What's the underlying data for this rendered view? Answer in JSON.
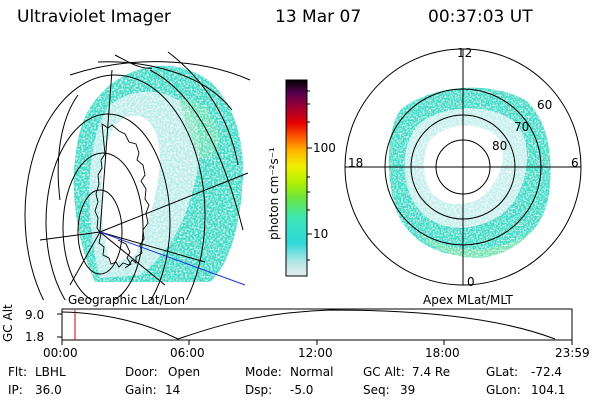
{
  "header": {
    "title": "Ultraviolet Imager",
    "date": "13 Mar 07",
    "time": "00:37:03 UT"
  },
  "geo_panel": {
    "label": "Geographic Lat/Lon"
  },
  "apex_panel": {
    "label": "Apex MLat/MLT",
    "mlt_labels": [
      "12",
      "18",
      "6",
      "0"
    ],
    "mlat_labels": [
      "60",
      "70",
      "80"
    ]
  },
  "colorbar": {
    "label": "photon cm⁻²s⁻¹",
    "ticks": [
      "100",
      "10"
    ],
    "scale": "log",
    "colors": [
      "#e8ecf0",
      "#b4e6e6",
      "#2ed8d8",
      "#3ce6b4",
      "#6ee63c",
      "#b4f000",
      "#f0f000",
      "#ffb400",
      "#ff6400",
      "#e60000",
      "#a00032",
      "#5a0050",
      "#000000"
    ]
  },
  "altitude_plot": {
    "ylabel": "GC Alt",
    "yticks": [
      "9.0",
      "1.8"
    ],
    "xticks": [
      "00:00",
      "06:00",
      "12:00",
      "18:00",
      "23:59"
    ],
    "current_time_fraction": 0.026
  },
  "info": {
    "row1": [
      {
        "key": "Flt:",
        "value": "LBHL"
      },
      {
        "key": "Door:",
        "value": "Open"
      },
      {
        "key": "Mode:",
        "value": "Normal"
      },
      {
        "key": "GC Alt:",
        "value": "7.4 Re"
      },
      {
        "key": "GLat:",
        "value": "-72.4"
      }
    ],
    "row2": [
      {
        "key": "IP:",
        "value": "36.0"
      },
      {
        "key": "Gain:",
        "value": "14"
      },
      {
        "key": "Dsp:",
        "value": "-5.0"
      },
      {
        "key": "Seq:",
        "value": "39"
      },
      {
        "key": "GLon:",
        "value": "104.1"
      }
    ]
  }
}
